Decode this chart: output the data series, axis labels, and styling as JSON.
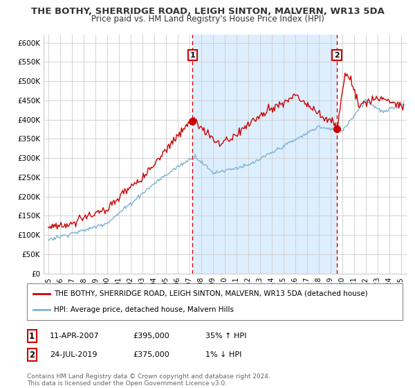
{
  "title": "THE BOTHY, SHERRIDGE ROAD, LEIGH SINTON, MALVERN, WR13 5DA",
  "subtitle": "Price paid vs. HM Land Registry's House Price Index (HPI)",
  "legend_line1": "THE BOTHY, SHERRIDGE ROAD, LEIGH SINTON, MALVERN, WR13 5DA (detached house)",
  "legend_line2": "HPI: Average price, detached house, Malvern Hills",
  "sale1_label": "1",
  "sale1_date": "11-APR-2007",
  "sale1_price": "£395,000",
  "sale1_hpi": "35% ↑ HPI",
  "sale1_year": 2007.28,
  "sale1_value": 395000,
  "sale2_label": "2",
  "sale2_date": "24-JUL-2019",
  "sale2_price": "£375,000",
  "sale2_hpi": "1% ↓ HPI",
  "sale2_year": 2019.56,
  "sale2_value": 375000,
  "footer": "Contains HM Land Registry data © Crown copyright and database right 2024.\nThis data is licensed under the Open Government Licence v3.0.",
  "ylim": [
    0,
    620000
  ],
  "xlim_start": 1994.6,
  "xlim_end": 2025.5,
  "red_color": "#cc0000",
  "blue_color": "#7fb3d3",
  "bg_color": "#ddeeff",
  "grid_color": "#cccccc",
  "title_color": "#333333"
}
